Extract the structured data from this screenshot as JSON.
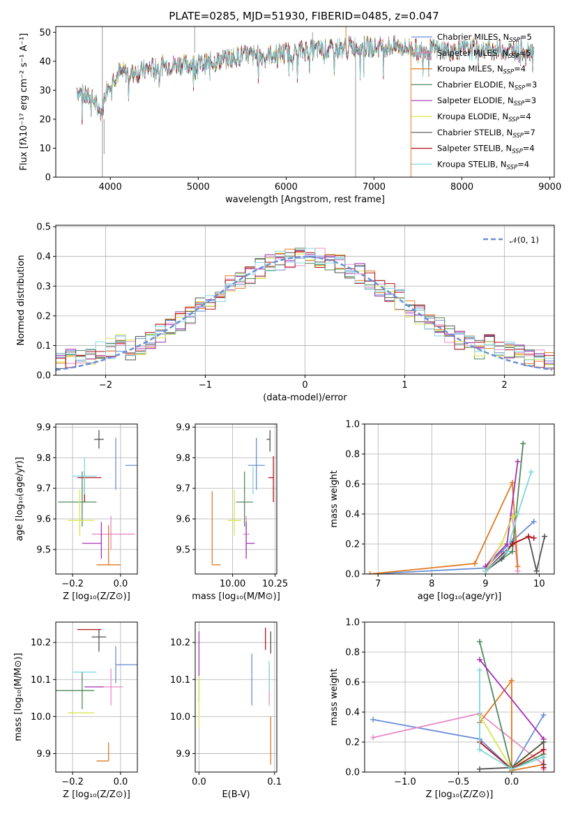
{
  "colors": {
    "chab_miles": "#6a8ed6",
    "salp_miles": "#e88ac6",
    "krou_miles": "#e07a1f",
    "chab_elodie": "#4f8a5a",
    "salp_elodie": "#a42fb4",
    "krou_elodie": "#d8e64a",
    "chab_stelib": "#505050",
    "salp_stelib": "#b2121c",
    "krou_stelib": "#7fd6dc",
    "normal": "#6a8ed6"
  },
  "chart_data": [
    {
      "id": "spectrum",
      "type": "line",
      "title": "PLATE=0285, MJD=51930, FIBERID=0485, z=0.047",
      "xlabel": "wavelength [Angstrom, rest frame]",
      "ylabel": "Flux [fλ10⁻¹⁷ erg cm⁻² s⁻¹ A⁻¹]",
      "xlim": [
        3380,
        9050
      ],
      "ylim": [
        0,
        52
      ],
      "xticks": [
        4000,
        5000,
        6000,
        7000,
        8000,
        9000
      ],
      "yticks": [
        0,
        10,
        20,
        30,
        40,
        50
      ],
      "legend_position": "right",
      "continuum": {
        "x": [
          3620,
          3700,
          3800,
          3900,
          3950,
          4000,
          4100,
          4300,
          4500,
          4800,
          5000,
          5200,
          5500,
          5800,
          6000,
          6300,
          6500,
          6700,
          6900,
          7100,
          7300,
          7500,
          7800,
          8000,
          8300,
          8600,
          8820
        ],
        "y": [
          30,
          28,
          27,
          22,
          30,
          33,
          36,
          36,
          38,
          39,
          39,
          40,
          42,
          42,
          43,
          44,
          44,
          45,
          45,
          45,
          45,
          44,
          44,
          44,
          44,
          44,
          44
        ]
      },
      "series": [
        {
          "name": "Chabrier MILES, N",
          "n_ssp": 5,
          "color_key": "chab_miles"
        },
        {
          "name": "Salpeter MILES, N",
          "n_ssp": 5,
          "color_key": "salp_miles"
        },
        {
          "name": "Kroupa MILES, N",
          "n_ssp": 4,
          "color_key": "krou_miles"
        },
        {
          "name": "Chabrier ELODIE, N",
          "n_ssp": 3,
          "color_key": "chab_elodie"
        },
        {
          "name": "Salpeter ELODIE, N",
          "n_ssp": 3,
          "color_key": "salp_elodie"
        },
        {
          "name": "Kroupa ELODIE, N",
          "n_ssp": 4,
          "color_key": "krou_elodie"
        },
        {
          "name": "Chabrier STELIB, N",
          "n_ssp": 7,
          "color_key": "chab_stelib"
        },
        {
          "name": "Salpeter STELIB, N",
          "n_ssp": 4,
          "color_key": "salp_stelib"
        },
        {
          "name": "Kroupa STELIB, N",
          "n_ssp": 4,
          "color_key": "krou_stelib"
        }
      ],
      "ssp_subscript": "SSP"
    },
    {
      "id": "residuals",
      "type": "line",
      "xlabel": "(data-model)/error",
      "ylabel": "Normed distribution",
      "xlim": [
        -2.5,
        2.5
      ],
      "ylim": [
        0,
        0.505
      ],
      "xticks": [
        -2,
        -1,
        0,
        1,
        2
      ],
      "yticks": [
        0.0,
        0.1,
        0.2,
        0.3,
        0.4,
        0.5
      ],
      "legend": "𝒩(0, 1)",
      "legend_position": "top-right",
      "normal_curve": {
        "mean": 0,
        "sigma": 1,
        "peak": 0.399
      },
      "bin_width": 0.1
    },
    {
      "id": "age_vs_z",
      "type": "scatter",
      "xlabel": "Z [log₁₀(Z/Z⊙)]",
      "ylabel": "age  [log₁₀(age/yr)]",
      "xlim": [
        -0.27,
        0.07
      ],
      "ylim": [
        9.42,
        9.91
      ],
      "xticks": [
        -0.2,
        0.0
      ],
      "yticks": [
        9.5,
        9.6,
        9.7,
        9.8,
        9.9
      ],
      "points": [
        {
          "x": -0.02,
          "y": 9.775,
          "ex": [
            -0.04,
            0.09
          ],
          "ey": [
            0.08,
            0.09
          ],
          "color_key": "chab_miles"
        },
        {
          "x": -0.04,
          "y": 9.55,
          "ex": [
            0.08,
            0.1
          ],
          "ey": [
            0.05,
            0.06
          ],
          "color_key": "salp_miles"
        },
        {
          "x": -0.05,
          "y": 9.45,
          "ex": [
            0.05,
            0.05
          ],
          "ey": [
            0.0,
            0.13
          ],
          "color_key": "krou_miles"
        },
        {
          "x": -0.16,
          "y": 9.655,
          "ex": [
            0.1,
            0.06
          ],
          "ey": [
            0.08,
            0.1
          ],
          "color_key": "chab_elodie"
        },
        {
          "x": -0.08,
          "y": 9.52,
          "ex": [
            0.08,
            0.0
          ],
          "ey": [
            0.05,
            0.07
          ],
          "color_key": "salp_elodie"
        },
        {
          "x": -0.17,
          "y": 9.595,
          "ex": [
            0.05,
            0.06
          ],
          "ey": [
            0.05,
            0.1
          ],
          "color_key": "krou_elodie"
        },
        {
          "x": -0.09,
          "y": 9.86,
          "ex": [
            0.02,
            0.02
          ],
          "ey": [
            0.03,
            0.03
          ],
          "color_key": "chab_stelib"
        },
        {
          "x": -0.15,
          "y": 9.735,
          "ex": [
            0.03,
            0.07
          ],
          "ey": [
            0.08,
            0.02
          ],
          "color_key": "salp_stelib"
        },
        {
          "x": -0.15,
          "y": 9.74,
          "ex": [
            0.05,
            0.05
          ],
          "ey": [
            0.06,
            0.06
          ],
          "color_key": "krou_stelib"
        }
      ]
    },
    {
      "id": "age_vs_mass",
      "type": "scatter",
      "xlabel": "mass [log₁₀(M/M⊙)]",
      "ylabel": "",
      "xlim": [
        9.78,
        10.26
      ],
      "ylim": [
        9.42,
        9.91
      ],
      "xticks": [
        10.0,
        10.25
      ],
      "yticks": [
        9.5,
        9.6,
        9.7,
        9.8,
        9.9
      ],
      "points": [
        {
          "x": 10.14,
          "y": 9.775,
          "ex": [
            0.05,
            0.05
          ],
          "ey": [
            0.08,
            0.09
          ],
          "color_key": "chab_miles"
        },
        {
          "x": 10.08,
          "y": 9.55,
          "ex": [
            0.02,
            0.02
          ],
          "ey": [
            0.05,
            0.06
          ],
          "color_key": "salp_miles"
        },
        {
          "x": 9.88,
          "y": 9.45,
          "ex": [
            0.0,
            0.05
          ],
          "ey": [
            0.0,
            0.24
          ],
          "color_key": "krou_miles"
        },
        {
          "x": 10.07,
          "y": 9.655,
          "ex": [
            0.05,
            0.05
          ],
          "ey": [
            0.08,
            0.1
          ],
          "color_key": "chab_elodie"
        },
        {
          "x": 10.08,
          "y": 9.52,
          "ex": [
            0.0,
            0.05
          ],
          "ey": [
            0.05,
            0.07
          ],
          "color_key": "salp_elodie"
        },
        {
          "x": 10.01,
          "y": 9.595,
          "ex": [
            0.04,
            0.04
          ],
          "ey": [
            0.05,
            0.1
          ],
          "color_key": "krou_elodie"
        },
        {
          "x": 10.22,
          "y": 9.86,
          "ex": [
            0.02,
            0.0
          ],
          "ey": [
            0.04,
            0.03
          ],
          "color_key": "chab_stelib"
        },
        {
          "x": 10.24,
          "y": 9.735,
          "ex": [
            0.03,
            0.0
          ],
          "ey": [
            0.08,
            0.07
          ],
          "color_key": "salp_stelib"
        },
        {
          "x": 10.12,
          "y": 9.74,
          "ex": [
            0.0,
            0.0
          ],
          "ey": [
            0.06,
            0.03
          ],
          "color_key": "krou_stelib"
        }
      ]
    },
    {
      "id": "weight_vs_age",
      "type": "line",
      "xlabel": "age  [log₁₀(age/yr)]",
      "ylabel": "mass weight",
      "xlim": [
        6.75,
        10.28
      ],
      "ylim": [
        0,
        1.0
      ],
      "xticks": [
        7,
        8,
        9,
        10
      ],
      "yticks": [
        0.0,
        0.2,
        0.4,
        0.6,
        0.8,
        1.0
      ],
      "series": [
        {
          "color_key": "chab_miles",
          "x": [
            6.85,
            9.0,
            9.3,
            9.5,
            9.9
          ],
          "y": [
            0.0,
            0.04,
            0.15,
            0.22,
            0.35
          ]
        },
        {
          "color_key": "salp_miles",
          "x": [
            9.0,
            9.3,
            9.5,
            9.6
          ],
          "y": [
            0.05,
            0.2,
            0.39,
            0.02
          ]
        },
        {
          "color_key": "krou_miles",
          "x": [
            6.85,
            8.8,
            9.5,
            9.6
          ],
          "y": [
            0.0,
            0.07,
            0.61,
            0.05
          ]
        },
        {
          "color_key": "chab_elodie",
          "x": [
            9.0,
            9.5,
            9.7
          ],
          "y": [
            0.02,
            0.15,
            0.87
          ]
        },
        {
          "color_key": "salp_elodie",
          "x": [
            9.0,
            9.4,
            9.6
          ],
          "y": [
            0.05,
            0.2,
            0.75
          ]
        },
        {
          "color_key": "krou_elodie",
          "x": [
            9.0,
            9.3,
            9.5,
            9.6
          ],
          "y": [
            0.02,
            0.2,
            0.38,
            0.4
          ]
        },
        {
          "color_key": "chab_stelib",
          "x": [
            9.0,
            9.3,
            9.5,
            9.8,
            9.95,
            10.1
          ],
          "y": [
            0.02,
            0.1,
            0.2,
            0.25,
            0.02,
            0.25
          ]
        },
        {
          "color_key": "salp_stelib",
          "x": [
            9.0,
            9.5,
            9.8,
            9.9
          ],
          "y": [
            0.02,
            0.2,
            0.25,
            0.24
          ]
        },
        {
          "color_key": "krou_stelib",
          "x": [
            9.0,
            9.4,
            9.6,
            9.85
          ],
          "y": [
            0.02,
            0.15,
            0.4,
            0.68
          ]
        }
      ]
    },
    {
      "id": "mass_vs_z",
      "type": "scatter",
      "xlabel": "Z [log₁₀(Z/Z⊙)]",
      "ylabel": "mass [log₁₀(M/M⊙)]",
      "xlim": [
        -0.27,
        0.07
      ],
      "ylim": [
        9.85,
        10.255
      ],
      "xticks": [
        -0.2,
        0.0
      ],
      "yticks": [
        9.9,
        10.0,
        10.1,
        10.2
      ],
      "points": [
        {
          "x": -0.02,
          "y": 10.14,
          "ex": [
            0.0,
            0.09
          ],
          "ey": [
            0.05,
            0.05
          ],
          "color_key": "chab_miles"
        },
        {
          "x": -0.04,
          "y": 10.08,
          "ex": [
            0.06,
            0.05
          ],
          "ey": [
            0.05,
            0.05
          ],
          "color_key": "salp_miles"
        },
        {
          "x": -0.05,
          "y": 9.88,
          "ex": [
            0.05,
            0.0
          ],
          "ey": [
            0.0,
            0.05
          ],
          "color_key": "krou_miles"
        },
        {
          "x": -0.16,
          "y": 10.07,
          "ex": [
            0.11,
            0.05
          ],
          "ey": [
            0.05,
            0.05
          ],
          "color_key": "chab_elodie"
        },
        {
          "x": -0.15,
          "y": 10.08,
          "ex": [
            0.0,
            0.08
          ],
          "ey": [
            0.0,
            0.0
          ],
          "color_key": "salp_elodie"
        },
        {
          "x": -0.17,
          "y": 10.01,
          "ex": [
            0.05,
            0.06
          ],
          "ey": [
            0.0,
            0.0
          ],
          "color_key": "krou_elodie"
        },
        {
          "x": -0.09,
          "y": 10.215,
          "ex": [
            0.03,
            0.03
          ],
          "ey": [
            0.04,
            0.02
          ],
          "color_key": "chab_stelib"
        },
        {
          "x": -0.15,
          "y": 10.235,
          "ex": [
            0.03,
            0.07
          ],
          "ey": [
            0.0,
            0.0
          ],
          "color_key": "salp_stelib"
        },
        {
          "x": -0.15,
          "y": 10.12,
          "ex": [
            0.05,
            0.05
          ],
          "ey": [
            0.0,
            0.0
          ],
          "color_key": "krou_stelib"
        }
      ]
    },
    {
      "id": "mass_vs_ebv",
      "type": "scatter",
      "xlabel": "E(B-V)",
      "ylabel": "",
      "xlim": [
        -0.005,
        0.103
      ],
      "ylim": [
        9.85,
        10.255
      ],
      "xticks": [
        0.0,
        0.1
      ],
      "yticks": [
        9.9,
        10.0,
        10.1,
        10.2
      ],
      "points": [
        {
          "x": 0.07,
          "y": 10.14,
          "ex": [
            0,
            0
          ],
          "ey": [
            0.11,
            0.03
          ],
          "color_key": "chab_miles"
        },
        {
          "x": 0.093,
          "y": 10.08,
          "ex": [
            0,
            0
          ],
          "ey": [
            0.05,
            0.05
          ],
          "color_key": "salp_miles"
        },
        {
          "x": 0.095,
          "y": 9.88,
          "ex": [
            0,
            0
          ],
          "ey": [
            0.01,
            0.12
          ],
          "color_key": "krou_miles"
        },
        {
          "x": 0.0,
          "y": 10.07,
          "ex": [
            0,
            0
          ],
          "ey": [
            0.03,
            0.03
          ],
          "color_key": "chab_elodie"
        },
        {
          "x": 0.0,
          "y": 10.18,
          "ex": [
            0,
            0
          ],
          "ey": [
            0.07,
            0.05
          ],
          "color_key": "salp_elodie"
        },
        {
          "x": 0.0,
          "y": 10.04,
          "ex": [
            0,
            0
          ],
          "ey": [
            0.07,
            0.07
          ],
          "color_key": "krou_elodie"
        },
        {
          "x": 0.095,
          "y": 10.2,
          "ex": [
            0,
            0
          ],
          "ey": [
            0.03,
            0.03
          ],
          "color_key": "chab_stelib"
        },
        {
          "x": 0.088,
          "y": 10.21,
          "ex": [
            0,
            0
          ],
          "ey": [
            0.03,
            0.03
          ],
          "color_key": "salp_stelib"
        },
        {
          "x": 0.093,
          "y": 10.11,
          "ex": [
            0,
            0
          ],
          "ey": [
            0.04,
            0.04
          ],
          "color_key": "krou_stelib"
        }
      ]
    },
    {
      "id": "weight_vs_z",
      "type": "line",
      "xlabel": "Z [log₁₀(Z/Z⊙)]",
      "ylabel": "mass weight",
      "xlim": [
        -1.38,
        0.4
      ],
      "ylim": [
        0,
        1.0
      ],
      "xticks": [
        -1.0,
        -0.5,
        0.0
      ],
      "yticks": [
        0.0,
        0.2,
        0.4,
        0.6,
        0.8,
        1.0
      ],
      "series": [
        {
          "color_key": "chab_miles",
          "x": [
            -1.3,
            -0.3,
            0.0,
            0.3
          ],
          "y": [
            0.35,
            0.22,
            0.02,
            0.38
          ]
        },
        {
          "color_key": "salp_miles",
          "x": [
            -1.3,
            -0.3,
            0.3,
            0.3
          ],
          "y": [
            0.23,
            0.39,
            0.05,
            0.02
          ]
        },
        {
          "color_key": "krou_miles",
          "x": [
            -0.3,
            0.0,
            0.0,
            0.3
          ],
          "y": [
            0.33,
            0.61,
            0.01,
            0.05
          ]
        },
        {
          "color_key": "chab_elodie",
          "x": [
            -0.3,
            0.0,
            0.3
          ],
          "y": [
            0.87,
            0.02,
            0.12
          ]
        },
        {
          "color_key": "salp_elodie",
          "x": [
            -0.3,
            0.3
          ],
          "y": [
            0.75,
            0.22
          ]
        },
        {
          "color_key": "krou_elodie",
          "x": [
            -0.3,
            0.0,
            0.3
          ],
          "y": [
            0.38,
            0.02,
            0.2
          ]
        },
        {
          "color_key": "chab_stelib",
          "x": [
            -0.3,
            0.0,
            0.3,
            0.3
          ],
          "y": [
            0.02,
            0.03,
            0.2,
            0.05
          ]
        },
        {
          "color_key": "salp_stelib",
          "x": [
            -0.3,
            0.0,
            0.3,
            0.3
          ],
          "y": [
            0.2,
            0.02,
            0.15,
            0.03
          ]
        },
        {
          "color_key": "krou_stelib",
          "x": [
            -0.3,
            -0.3,
            0.0,
            0.3
          ],
          "y": [
            0.68,
            0.15,
            0.02,
            0.1
          ]
        }
      ]
    }
  ]
}
